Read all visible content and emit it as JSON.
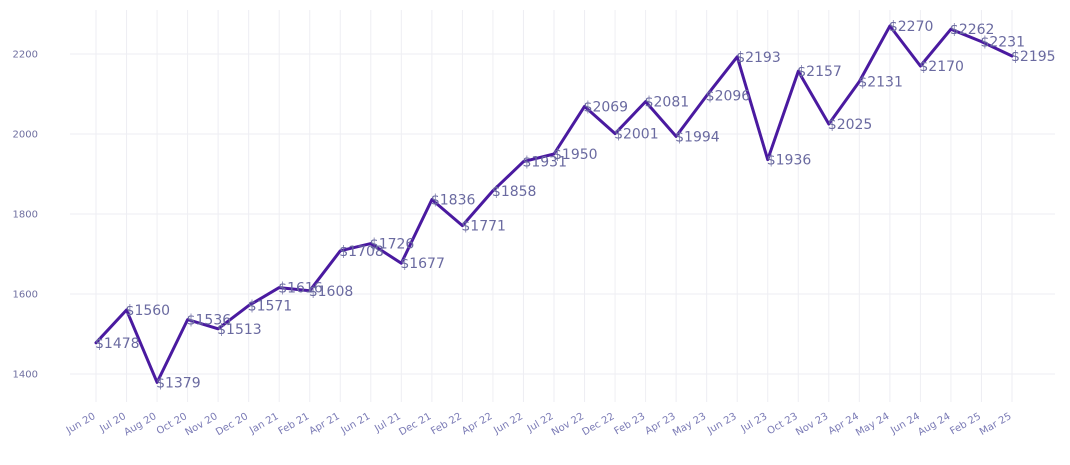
{
  "chart_data": {
    "type": "line",
    "title": "",
    "xlabel": "",
    "ylabel": "",
    "ylim": [
      1330,
      2310
    ],
    "yticks": [
      1400,
      1600,
      1800,
      2000,
      2200
    ],
    "grid": true,
    "legend": "none",
    "line_color": "#4a1aa0",
    "label_prefix": "$",
    "categories": [
      "Jun 20",
      "Jul 20",
      "Aug 20",
      "Oct 20",
      "Nov 20",
      "Dec 20",
      "Jan 21",
      "Feb 21",
      "Apr 21",
      "Jun 21",
      "Jul 21",
      "Dec 21",
      "Feb 22",
      "Apr 22",
      "Jun 22",
      "Jul 22",
      "Nov 22",
      "Dec 22",
      "Feb 23",
      "Apr 23",
      "May 23",
      "Jun 23",
      "Jul 23",
      "Oct 23",
      "Nov 23",
      "Apr 24",
      "May 24",
      "Jun 24",
      "Aug 24",
      "Feb 25",
      "Mar 25"
    ],
    "series": [
      {
        "values": [
          1478,
          1560,
          1379,
          1536,
          1513,
          1571,
          1616,
          1608,
          1708,
          1726,
          1677,
          1836,
          1771,
          1858,
          1931,
          1950,
          2069,
          2001,
          2081,
          1994,
          2096,
          2193,
          1936,
          2157,
          2025,
          2131,
          2270,
          2170,
          2262,
          2231,
          2195
        ]
      }
    ]
  }
}
